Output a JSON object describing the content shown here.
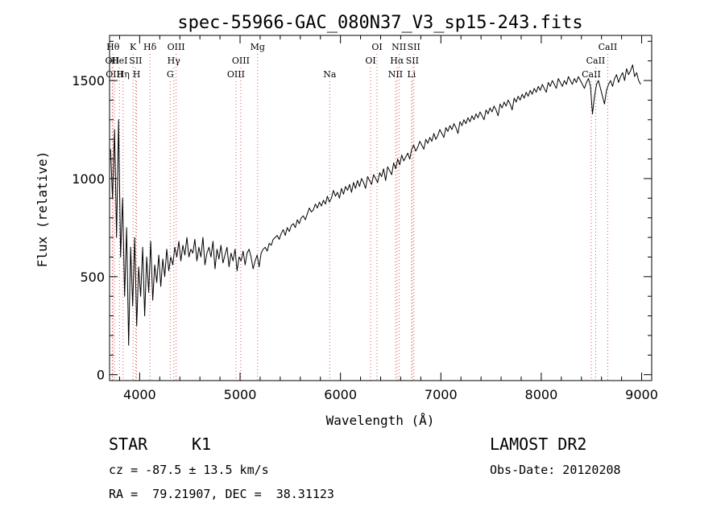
{
  "chart_data": {
    "type": "line",
    "title": "spec-55966-GAC_080N37_V3_sp15-243.fits",
    "xlabel": "Wavelength (Å)",
    "ylabel": "Flux (relative)",
    "xlim": [
      3700,
      9100
    ],
    "ylim": [
      -30,
      1730
    ],
    "x_ticks": [
      4000,
      5000,
      6000,
      7000,
      8000,
      9000
    ],
    "y_ticks": [
      0,
      500,
      1000,
      1500
    ],
    "grid": false,
    "legend": "none",
    "series": [
      {
        "x": [
          3710,
          3730,
          3750,
          3770,
          3790,
          3810,
          3830,
          3850,
          3870,
          3890,
          3910,
          3930,
          3950,
          3970,
          3990,
          4010,
          4030,
          4050,
          4070,
          4090,
          4110,
          4130,
          4150,
          4170,
          4190,
          4210,
          4230,
          4250,
          4270,
          4290,
          4310,
          4330,
          4350,
          4370,
          4390,
          4410,
          4430,
          4450,
          4470,
          4490,
          4510,
          4530,
          4550,
          4570,
          4590,
          4610,
          4630,
          4650,
          4670,
          4690,
          4710,
          4730,
          4750,
          4770,
          4790,
          4810,
          4830,
          4850,
          4870,
          4890,
          4910,
          4930,
          4950,
          4970,
          4990,
          5010,
          5030,
          5050,
          5070,
          5090,
          5110,
          5130,
          5150,
          5170,
          5190,
          5210,
          5230,
          5250,
          5270,
          5290,
          5310,
          5330,
          5350,
          5370,
          5390,
          5410,
          5430,
          5450,
          5470,
          5490,
          5510,
          5530,
          5550,
          5570,
          5590,
          5610,
          5630,
          5650,
          5670,
          5690,
          5710,
          5730,
          5750,
          5770,
          5790,
          5810,
          5830,
          5850,
          5870,
          5890,
          5910,
          5930,
          5950,
          5970,
          5990,
          6010,
          6030,
          6050,
          6070,
          6090,
          6110,
          6130,
          6150,
          6170,
          6190,
          6210,
          6230,
          6250,
          6270,
          6290,
          6310,
          6330,
          6350,
          6370,
          6390,
          6410,
          6430,
          6450,
          6470,
          6490,
          6510,
          6530,
          6550,
          6570,
          6590,
          6610,
          6630,
          6650,
          6670,
          6690,
          6710,
          6730,
          6750,
          6770,
          6790,
          6810,
          6830,
          6850,
          6870,
          6890,
          6910,
          6930,
          6950,
          6970,
          6990,
          7010,
          7030,
          7050,
          7070,
          7090,
          7110,
          7130,
          7150,
          7170,
          7190,
          7210,
          7230,
          7250,
          7270,
          7290,
          7310,
          7330,
          7350,
          7370,
          7390,
          7410,
          7430,
          7450,
          7470,
          7490,
          7510,
          7530,
          7550,
          7570,
          7590,
          7610,
          7630,
          7650,
          7670,
          7690,
          7710,
          7730,
          7750,
          7770,
          7790,
          7810,
          7830,
          7850,
          7870,
          7890,
          7910,
          7930,
          7950,
          7970,
          7990,
          8010,
          8030,
          8050,
          8070,
          8090,
          8110,
          8130,
          8150,
          8170,
          8190,
          8210,
          8230,
          8250,
          8270,
          8290,
          8310,
          8330,
          8350,
          8370,
          8390,
          8410,
          8430,
          8450,
          8470,
          8490,
          8510,
          8530,
          8550,
          8570,
          8590,
          8610,
          8630,
          8650,
          8670,
          8690,
          8710,
          8730,
          8750,
          8770,
          8790,
          8810,
          8830,
          8850,
          8870,
          8890,
          8910,
          8930,
          8950,
          8970,
          8990
        ],
        "y": [
          1150,
          900,
          1250,
          700,
          1300,
          600,
          900,
          400,
          750,
          150,
          650,
          350,
          700,
          250,
          550,
          400,
          650,
          300,
          600,
          420,
          680,
          380,
          560,
          470,
          610,
          450,
          590,
          500,
          640,
          530,
          600,
          560,
          650,
          600,
          680,
          580,
          660,
          610,
          700,
          600,
          640,
          620,
          690,
          580,
          650,
          600,
          700,
          560,
          620,
          650,
          600,
          680,
          540,
          640,
          590,
          660,
          570,
          610,
          650,
          550,
          620,
          580,
          640,
          530,
          600,
          580,
          630,
          560,
          620,
          640,
          600,
          540,
          580,
          610,
          550,
          620,
          640,
          650,
          630,
          670,
          660,
          690,
          700,
          710,
          690,
          720,
          740,
          710,
          750,
          730,
          760,
          770,
          750,
          790,
          770,
          800,
          810,
          790,
          820,
          850,
          830,
          840,
          870,
          850,
          880,
          860,
          890,
          870,
          910,
          880,
          900,
          940,
          910,
          930,
          900,
          950,
          920,
          960,
          940,
          970,
          930,
          980,
          950,
          990,
          960,
          1000,
          980,
          950,
          1010,
          990,
          970,
          1020,
          1000,
          980,
          1030,
          1010,
          1050,
          990,
          1060,
          1040,
          1020,
          1080,
          1050,
          1100,
          1070,
          1120,
          1090,
          1110,
          1130,
          1100,
          1150,
          1170,
          1140,
          1160,
          1190,
          1170,
          1150,
          1200,
          1180,
          1210,
          1190,
          1230,
          1200,
          1220,
          1250,
          1230,
          1210,
          1260,
          1240,
          1270,
          1250,
          1280,
          1260,
          1230,
          1290,
          1270,
          1300,
          1280,
          1310,
          1290,
          1320,
          1300,
          1330,
          1310,
          1340,
          1320,
          1300,
          1350,
          1330,
          1360,
          1340,
          1370,
          1350,
          1320,
          1380,
          1360,
          1390,
          1370,
          1400,
          1380,
          1350,
          1410,
          1390,
          1420,
          1400,
          1430,
          1410,
          1440,
          1420,
          1450,
          1430,
          1460,
          1440,
          1470,
          1450,
          1480,
          1460,
          1440,
          1490,
          1470,
          1500,
          1480,
          1460,
          1510,
          1490,
          1470,
          1500,
          1480,
          1520,
          1500,
          1480,
          1510,
          1490,
          1520,
          1500,
          1480,
          1460,
          1490,
          1510,
          1470,
          1330,
          1420,
          1480,
          1500,
          1460,
          1420,
          1380,
          1450,
          1480,
          1500,
          1470,
          1510,
          1530,
          1490,
          1520,
          1540,
          1500,
          1560,
          1530,
          1550,
          1580,
          1520,
          1540,
          1500,
          1480
        ]
      }
    ],
    "lines": [
      {
        "x": 3727,
        "label": "OII",
        "row": 2
      },
      {
        "x": 3734,
        "label": "Hθ",
        "row": 1
      },
      {
        "x": 3750,
        "label": "OIII",
        "row": 3
      },
      {
        "x": 3798,
        "label": "HeI",
        "row": 2
      },
      {
        "x": 3835,
        "label": "Hη",
        "row": 3
      },
      {
        "x": 3934,
        "label": "K",
        "row": 1
      },
      {
        "x": 3960,
        "label": "SII",
        "row": 2
      },
      {
        "x": 3969,
        "label": "H",
        "row": 3
      },
      {
        "x": 4102,
        "label": "Hδ",
        "row": 1
      },
      {
        "x": 4304,
        "label": "G",
        "row": 3
      },
      {
        "x": 4340,
        "label": "Hγ",
        "row": 2
      },
      {
        "x": 4363,
        "label": "OIII",
        "row": 1
      },
      {
        "x": 4959,
        "label": "OIII",
        "row": 3
      },
      {
        "x": 5007,
        "label": "OIII",
        "row": 2
      },
      {
        "x": 5175,
        "label": "Mg",
        "row": 1
      },
      {
        "x": 5893,
        "label": "Na",
        "row": 3
      },
      {
        "x": 6300,
        "label": "OI",
        "row": 2
      },
      {
        "x": 6364,
        "label": "OI",
        "row": 1
      },
      {
        "x": 6548,
        "label": "NII",
        "row": 3
      },
      {
        "x": 6563,
        "label": "Hα",
        "row": 2
      },
      {
        "x": 6583,
        "label": "NII",
        "row": 1
      },
      {
        "x": 6708,
        "label": "Li",
        "row": 3
      },
      {
        "x": 6716,
        "label": "SII",
        "row": 2
      },
      {
        "x": 6731,
        "label": "SII",
        "row": 1
      },
      {
        "x": 8498,
        "label": "CaII",
        "row": 3
      },
      {
        "x": 8542,
        "label": "CaII",
        "row": 2
      },
      {
        "x": 8662,
        "label": "CaII",
        "row": 1
      }
    ]
  },
  "info": {
    "class": "STAR",
    "subclass": "K1",
    "survey": "LAMOST DR2",
    "cz": "cz = -87.5 ± 13.5 km/s",
    "obs_date": "Obs-Date: 20120208",
    "coords": "RA =  79.21907, DEC =  38.31123"
  },
  "colors": {
    "line_markers": "#e05050",
    "spectrum": "#000000"
  }
}
